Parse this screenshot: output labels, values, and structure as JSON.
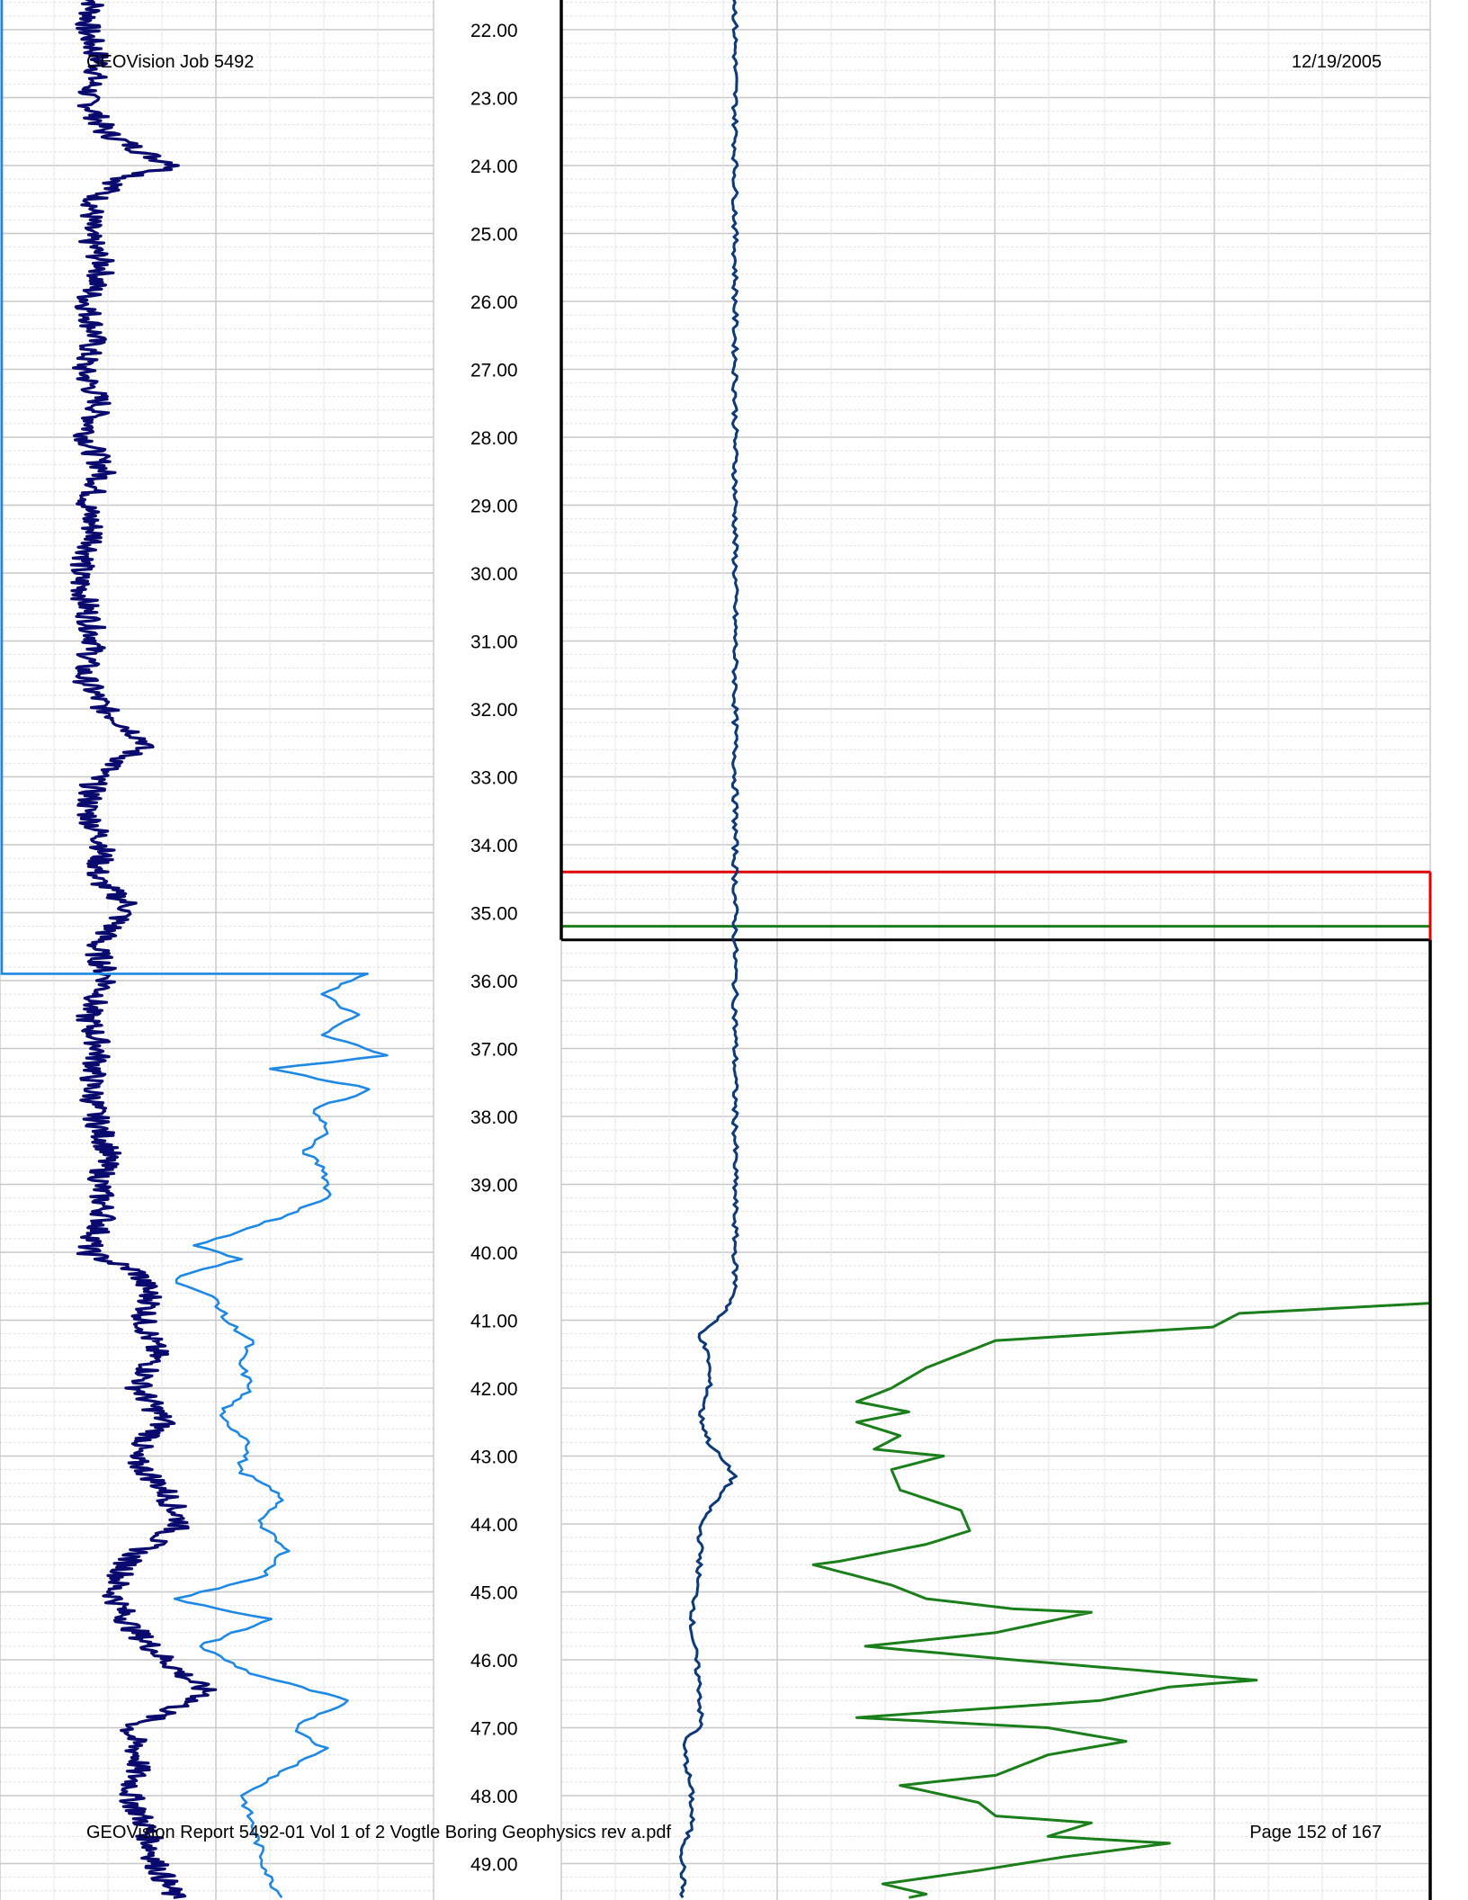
{
  "header": {
    "job": "GEOVision Job 5492",
    "date": "12/19/2005"
  },
  "footer": {
    "report": "GEOVision Report 5492-01 Vol 1 of 2 Vogtle Boring Geophysics rev a.pdf",
    "page": "Page 152 of 167"
  },
  "chart_data": {
    "type": "line",
    "depth_axis": {
      "range": [
        21.5,
        49.5
      ],
      "ticks": [
        "22.00",
        "23.00",
        "24.00",
        "25.00",
        "26.00",
        "27.00",
        "28.00",
        "29.00",
        "30.00",
        "31.00",
        "32.00",
        "33.00",
        "34.00",
        "35.00",
        "36.00",
        "37.00",
        "38.00",
        "39.00",
        "40.00",
        "41.00",
        "42.00",
        "43.00",
        "44.00",
        "45.00",
        "46.00",
        "47.00",
        "48.00",
        "49.00"
      ],
      "reversed": true
    },
    "grid": true,
    "tracks": [
      {
        "id": "left",
        "series": [
          {
            "color": "#0a0a6e",
            "points": [
              [
                21.5,
                0.22
              ],
              [
                22.0,
                0.2
              ],
              [
                22.5,
                0.23
              ],
              [
                23.0,
                0.2
              ],
              [
                23.5,
                0.24
              ],
              [
                23.9,
                0.36
              ],
              [
                24.0,
                0.42
              ],
              [
                24.2,
                0.28
              ],
              [
                24.5,
                0.22
              ],
              [
                25.0,
                0.2
              ],
              [
                25.5,
                0.24
              ],
              [
                26.0,
                0.2
              ],
              [
                26.5,
                0.22
              ],
              [
                27.0,
                0.19
              ],
              [
                27.5,
                0.23
              ],
              [
                28.0,
                0.2
              ],
              [
                28.5,
                0.24
              ],
              [
                29.0,
                0.2
              ],
              [
                29.5,
                0.22
              ],
              [
                30.0,
                0.18
              ],
              [
                30.5,
                0.2
              ],
              [
                31.0,
                0.22
              ],
              [
                31.5,
                0.19
              ],
              [
                32.0,
                0.24
              ],
              [
                32.5,
                0.34
              ],
              [
                33.0,
                0.22
              ],
              [
                33.5,
                0.2
              ],
              [
                34.0,
                0.24
              ],
              [
                34.5,
                0.22
              ],
              [
                34.9,
                0.3
              ],
              [
                35.5,
                0.22
              ],
              [
                36.0,
                0.25
              ],
              [
                36.5,
                0.2
              ],
              [
                37.0,
                0.23
              ],
              [
                37.5,
                0.21
              ],
              [
                38.0,
                0.22
              ],
              [
                38.5,
                0.25
              ],
              [
                39.0,
                0.23
              ],
              [
                39.5,
                0.24
              ],
              [
                40.0,
                0.2
              ],
              [
                40.3,
                0.32
              ],
              [
                40.7,
                0.35
              ],
              [
                41.0,
                0.33
              ],
              [
                41.5,
                0.36
              ],
              [
                42.0,
                0.32
              ],
              [
                42.5,
                0.38
              ],
              [
                43.0,
                0.3
              ],
              [
                43.5,
                0.38
              ],
              [
                44.0,
                0.42
              ],
              [
                44.5,
                0.3
              ],
              [
                45.0,
                0.26
              ],
              [
                45.5,
                0.3
              ],
              [
                46.0,
                0.38
              ],
              [
                46.5,
                0.48
              ],
              [
                47.0,
                0.3
              ],
              [
                47.5,
                0.32
              ],
              [
                48.0,
                0.3
              ],
              [
                48.5,
                0.34
              ],
              [
                49.0,
                0.36
              ],
              [
                49.5,
                0.4
              ]
            ]
          },
          {
            "color": "#1e88e5",
            "start": 35.9,
            "points": [
              [
                35.9,
                0.85
              ],
              [
                36.2,
                0.74
              ],
              [
                36.5,
                0.82
              ],
              [
                36.8,
                0.74
              ],
              [
                37.1,
                0.9
              ],
              [
                37.3,
                0.62
              ],
              [
                37.6,
                0.86
              ],
              [
                37.9,
                0.72
              ],
              [
                38.2,
                0.76
              ],
              [
                38.5,
                0.7
              ],
              [
                38.8,
                0.75
              ],
              [
                39.2,
                0.76
              ],
              [
                39.6,
                0.6
              ],
              [
                39.9,
                0.45
              ],
              [
                40.1,
                0.55
              ],
              [
                40.4,
                0.4
              ],
              [
                40.7,
                0.5
              ],
              [
                41.0,
                0.52
              ],
              [
                41.3,
                0.58
              ],
              [
                41.6,
                0.55
              ],
              [
                42.0,
                0.58
              ],
              [
                42.4,
                0.5
              ],
              [
                42.8,
                0.58
              ],
              [
                43.2,
                0.55
              ],
              [
                43.6,
                0.65
              ],
              [
                44.0,
                0.6
              ],
              [
                44.4,
                0.66
              ],
              [
                44.8,
                0.6
              ],
              [
                45.1,
                0.4
              ],
              [
                45.4,
                0.62
              ],
              [
                45.8,
                0.46
              ],
              [
                46.2,
                0.58
              ],
              [
                46.6,
                0.8
              ],
              [
                47.0,
                0.68
              ],
              [
                47.3,
                0.75
              ],
              [
                47.7,
                0.64
              ],
              [
                48.0,
                0.56
              ],
              [
                48.4,
                0.58
              ],
              [
                48.8,
                0.6
              ],
              [
                49.2,
                0.62
              ],
              [
                49.5,
                0.65
              ]
            ]
          }
        ]
      },
      {
        "id": "right",
        "series": [
          {
            "color": "#0d3a7a",
            "points": [
              [
                21.5,
                0.2
              ],
              [
                40.6,
                0.2
              ],
              [
                40.85,
                0.19
              ],
              [
                41.2,
                0.16
              ],
              [
                41.6,
                0.17
              ],
              [
                42.0,
                0.17
              ],
              [
                42.4,
                0.16
              ],
              [
                42.8,
                0.17
              ],
              [
                43.3,
                0.2
              ],
              [
                43.6,
                0.18
              ],
              [
                44.0,
                0.16
              ],
              [
                44.5,
                0.16
              ],
              [
                45.0,
                0.155
              ],
              [
                45.5,
                0.15
              ],
              [
                46.0,
                0.155
              ],
              [
                46.5,
                0.16
              ],
              [
                47.0,
                0.16
              ],
              [
                47.2,
                0.14
              ],
              [
                47.6,
                0.145
              ],
              [
                48.0,
                0.15
              ],
              [
                48.4,
                0.15
              ],
              [
                48.8,
                0.14
              ],
              [
                49.5,
                0.14
              ]
            ]
          },
          {
            "color": "#1a7f1a",
            "points": [
              [
                40.75,
                1.0
              ],
              [
                40.9,
                0.78
              ],
              [
                41.1,
                0.75
              ],
              [
                41.3,
                0.5
              ],
              [
                41.5,
                0.46
              ],
              [
                41.7,
                0.42
              ],
              [
                42.0,
                0.38
              ],
              [
                42.2,
                0.34
              ],
              [
                42.35,
                0.4
              ],
              [
                42.5,
                0.34
              ],
              [
                42.7,
                0.39
              ],
              [
                42.9,
                0.36
              ],
              [
                43.0,
                0.44
              ],
              [
                43.2,
                0.38
              ],
              [
                43.5,
                0.39
              ],
              [
                43.8,
                0.46
              ],
              [
                44.1,
                0.47
              ],
              [
                44.3,
                0.42
              ],
              [
                44.55,
                0.32
              ],
              [
                44.6,
                0.29
              ],
              [
                44.9,
                0.38
              ],
              [
                45.1,
                0.42
              ],
              [
                45.25,
                0.52
              ],
              [
                45.3,
                0.61
              ],
              [
                45.6,
                0.5
              ],
              [
                45.8,
                0.35
              ],
              [
                46.0,
                0.52
              ],
              [
                46.3,
                0.8
              ],
              [
                46.4,
                0.7
              ],
              [
                46.6,
                0.62
              ],
              [
                46.85,
                0.34
              ],
              [
                47.0,
                0.56
              ],
              [
                47.2,
                0.65
              ],
              [
                47.4,
                0.56
              ],
              [
                47.7,
                0.5
              ],
              [
                47.85,
                0.39
              ],
              [
                48.1,
                0.48
              ],
              [
                48.3,
                0.5
              ],
              [
                48.4,
                0.61
              ],
              [
                48.6,
                0.56
              ],
              [
                48.7,
                0.7
              ],
              [
                48.9,
                0.58
              ],
              [
                49.1,
                0.48
              ],
              [
                49.3,
                0.37
              ],
              [
                49.45,
                0.42
              ],
              [
                49.5,
                0.4
              ]
            ]
          }
        ],
        "horizontal_markers": [
          {
            "color": "#e00000",
            "depth": 34.4
          },
          {
            "color": "#1a7f1a",
            "depth": 35.2
          },
          {
            "color": "#000000",
            "depth": 35.4
          }
        ]
      }
    ]
  }
}
